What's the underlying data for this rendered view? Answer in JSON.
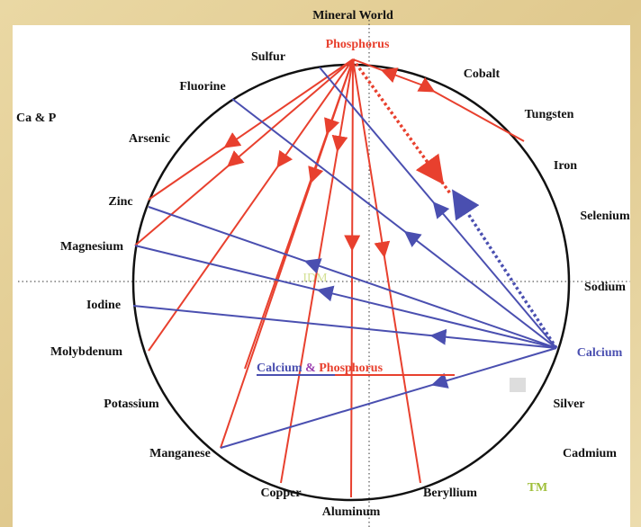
{
  "title": "Mineral World",
  "logo": "Ca & P",
  "watermark": "IDM",
  "caption": {
    "part1": "Calcium",
    "amp": "&",
    "part2": "Phosphorus"
  },
  "trademark": "TM",
  "minerals": [
    "Phosphorus",
    "Sulfur",
    "Cobalt",
    "Fluorine",
    "Tungsten",
    "Arsenic",
    "Iron",
    "Zinc",
    "Selenium",
    "Magnesium",
    "Sodium",
    "Iodine",
    "Calcium",
    "Molybdenum",
    "Silver",
    "Potassium",
    "Cadmium",
    "Manganese",
    "Copper",
    "Beryllium",
    "Aluminum"
  ]
}
